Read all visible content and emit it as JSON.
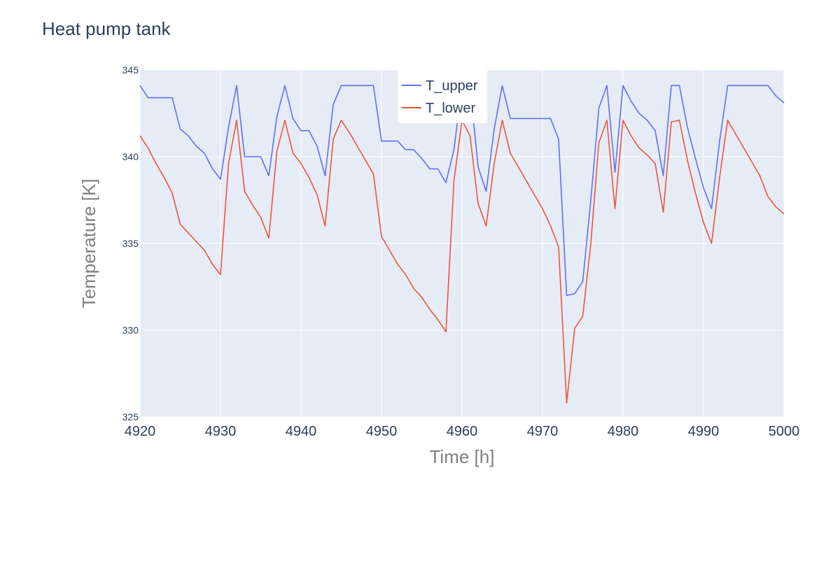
{
  "chart_data": {
    "type": "line",
    "title": "Heat pump tank",
    "xlabel": "Time [h]",
    "ylabel": "Temperature [K]",
    "xlim": [
      4920,
      5000
    ],
    "ylim": [
      325,
      345
    ],
    "xticks": [
      4920,
      4930,
      4940,
      4950,
      4960,
      4970,
      4980,
      4990,
      5000
    ],
    "yticks": [
      325,
      330,
      335,
      340,
      345
    ],
    "grid": true,
    "legend_position": "top-center",
    "background_color": "#e5ecf6",
    "series": [
      {
        "name": "T_upper",
        "color": "#636efa",
        "x": [
          4920,
          4921,
          4922,
          4923,
          4924,
          4925,
          4926,
          4927,
          4928,
          4929,
          4930,
          4931,
          4932,
          4933,
          4934,
          4935,
          4936,
          4937,
          4938,
          4939,
          4940,
          4941,
          4942,
          4943,
          4944,
          4945,
          4946,
          4947,
          4948,
          4949,
          4950,
          4951,
          4952,
          4953,
          4954,
          4955,
          4956,
          4957,
          4958,
          4959,
          4960,
          4961,
          4962,
          4963,
          4964,
          4965,
          4966,
          4967,
          4968,
          4969,
          4970,
          4971,
          4972,
          4973,
          4974,
          4975,
          4976,
          4977,
          4978,
          4979,
          4980,
          4981,
          4982,
          4983,
          4984,
          4985,
          4986,
          4987,
          4988,
          4989,
          4990,
          4991,
          4992,
          4993,
          4994,
          4995,
          4996,
          4997,
          4998,
          4999,
          5000
        ],
        "values": [
          344.1,
          343.4,
          343.4,
          343.4,
          343.4,
          341.6,
          341.2,
          340.6,
          340.2,
          339.3,
          338.7,
          341.7,
          344.1,
          340.0,
          340.0,
          340.0,
          338.9,
          342.3,
          344.1,
          342.2,
          341.5,
          341.5,
          340.6,
          338.9,
          343.0,
          344.1,
          344.1,
          344.1,
          344.1,
          344.1,
          340.9,
          340.9,
          340.9,
          340.4,
          340.4,
          339.9,
          339.3,
          339.3,
          338.5,
          340.4,
          344.1,
          344.1,
          339.4,
          338.0,
          341.6,
          344.1,
          342.2,
          342.2,
          342.2,
          342.2,
          342.2,
          342.2,
          341.0,
          332.0,
          332.1,
          332.8,
          337.5,
          342.8,
          344.1,
          339.1,
          344.1,
          343.2,
          342.5,
          342.1,
          341.5,
          338.9,
          344.1,
          344.1,
          341.7,
          339.9,
          338.2,
          337.0,
          340.9,
          344.1,
          344.1,
          344.1,
          344.1,
          344.1,
          344.1,
          343.5,
          343.1
        ]
      },
      {
        "name": "T_lower",
        "color": "#ef553b",
        "x": [
          4920,
          4921,
          4922,
          4923,
          4924,
          4925,
          4926,
          4927,
          4928,
          4929,
          4930,
          4931,
          4932,
          4933,
          4934,
          4935,
          4936,
          4937,
          4938,
          4939,
          4940,
          4941,
          4942,
          4943,
          4944,
          4945,
          4946,
          4947,
          4948,
          4949,
          4950,
          4951,
          4952,
          4953,
          4954,
          4955,
          4956,
          4957,
          4958,
          4959,
          4960,
          4961,
          4962,
          4963,
          4964,
          4965,
          4966,
          4967,
          4968,
          4969,
          4970,
          4971,
          4972,
          4973,
          4974,
          4975,
          4976,
          4977,
          4978,
          4979,
          4980,
          4981,
          4982,
          4983,
          4984,
          4985,
          4986,
          4987,
          4988,
          4989,
          4990,
          4991,
          4992,
          4993,
          4994,
          4995,
          4996,
          4997,
          4998,
          4999,
          5000
        ],
        "values": [
          341.2,
          340.5,
          339.6,
          338.8,
          337.9,
          336.1,
          335.6,
          335.1,
          334.6,
          333.8,
          333.2,
          339.6,
          342.1,
          338.0,
          337.2,
          336.5,
          335.3,
          340.3,
          342.1,
          340.2,
          339.6,
          338.8,
          337.8,
          336.0,
          341.0,
          342.1,
          341.4,
          340.6,
          339.8,
          339.0,
          335.4,
          334.6,
          333.8,
          333.2,
          332.4,
          331.9,
          331.2,
          330.6,
          329.9,
          338.6,
          342.1,
          341.2,
          337.3,
          336.0,
          339.6,
          342.1,
          340.2,
          339.4,
          338.6,
          337.8,
          337.0,
          336.0,
          334.8,
          325.8,
          330.1,
          330.8,
          335.0,
          340.8,
          342.1,
          337.0,
          342.1,
          341.2,
          340.5,
          340.1,
          339.6,
          336.8,
          342.0,
          342.1,
          339.8,
          337.9,
          336.2,
          335.0,
          338.8,
          342.1,
          341.3,
          340.5,
          339.7,
          338.9,
          337.7,
          337.1,
          336.7
        ]
      }
    ]
  }
}
